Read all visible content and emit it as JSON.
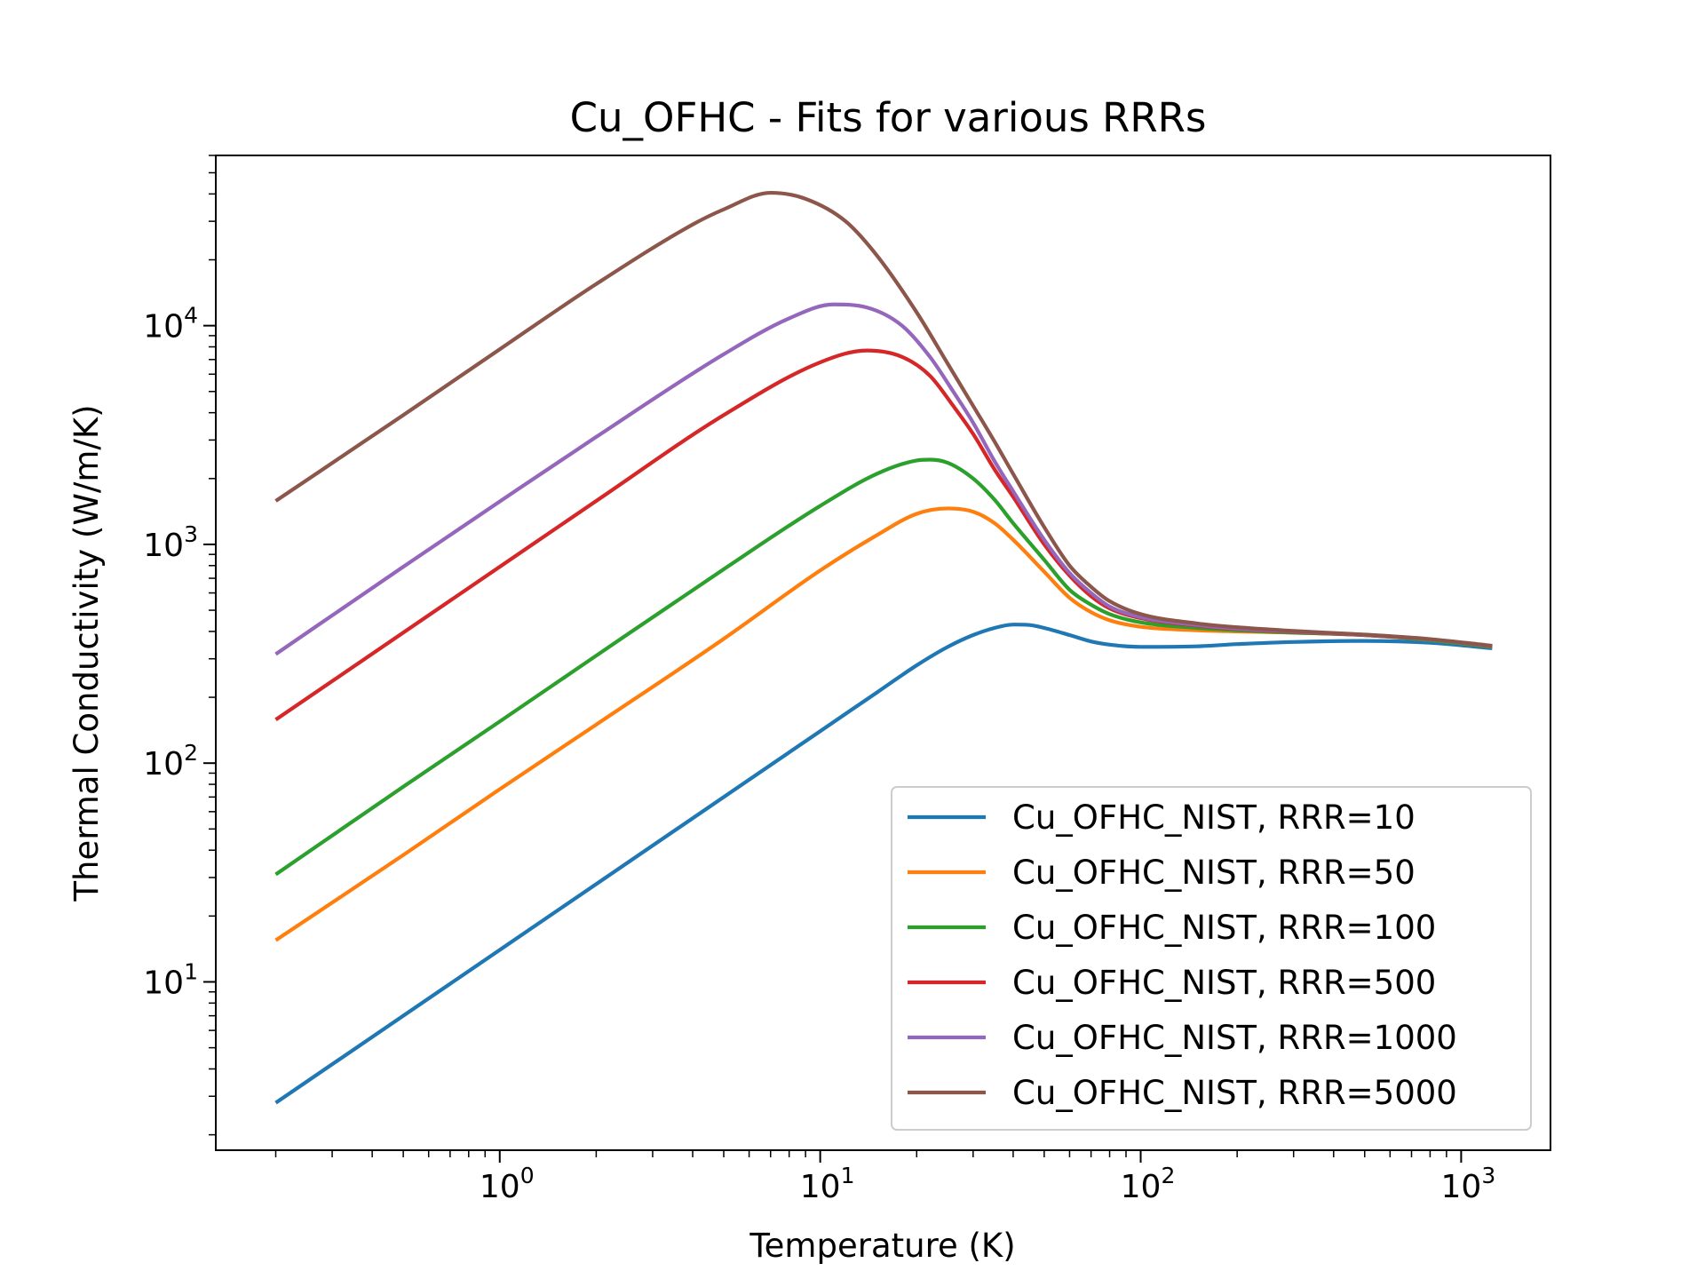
{
  "chart_data": {
    "type": "line",
    "title": "Cu_OFHC - Fits for various RRRs",
    "xlabel": "Temperature (K)",
    "ylabel": "Thermal Conductivity (W/m/K)",
    "xscale": "log",
    "yscale": "log",
    "xlim": [
      0.13,
      1900
    ],
    "ylim": [
      1.7,
      60000
    ],
    "x_ticks": [
      {
        "value": 1,
        "base": "10",
        "exp": "0"
      },
      {
        "value": 10,
        "base": "10",
        "exp": "1"
      },
      {
        "value": 100,
        "base": "10",
        "exp": "2"
      },
      {
        "value": 1000,
        "base": "10",
        "exp": "3"
      }
    ],
    "y_ticks": [
      {
        "value": 10,
        "base": "10",
        "exp": "1"
      },
      {
        "value": 100,
        "base": "10",
        "exp": "2"
      },
      {
        "value": 1000,
        "base": "10",
        "exp": "3"
      },
      {
        "value": 10000,
        "base": "10",
        "exp": "4"
      }
    ],
    "grid": false,
    "legend_position": "lower-right",
    "series": [
      {
        "name": "Cu_OFHC_NIST, RRR=10",
        "color": "#1f77b4",
        "x": [
          0.2,
          0.5,
          1,
          2,
          5,
          10,
          15,
          20,
          25,
          30,
          35,
          40,
          45,
          50,
          60,
          70,
          80,
          100,
          150,
          200,
          300,
          500,
          800,
          1250
        ],
        "y": [
          2.8,
          7,
          14,
          28,
          70,
          140,
          210,
          280,
          340,
          385,
          415,
          430,
          428,
          415,
          385,
          360,
          348,
          340,
          342,
          350,
          358,
          362,
          355,
          335
        ]
      },
      {
        "name": "Cu_OFHC_NIST, RRR=50",
        "color": "#ff7f0e",
        "x": [
          0.2,
          0.5,
          1,
          2,
          5,
          10,
          15,
          20,
          25,
          30,
          35,
          40,
          50,
          60,
          70,
          80,
          100,
          150,
          200,
          300,
          500,
          800,
          1250
        ],
        "y": [
          15.5,
          38,
          76,
          150,
          370,
          760,
          1100,
          1380,
          1460,
          1410,
          1250,
          1050,
          750,
          570,
          490,
          450,
          420,
          405,
          400,
          395,
          385,
          365,
          340
        ]
      },
      {
        "name": "Cu_OFHC_NIST, RRR=100",
        "color": "#2ca02c",
        "x": [
          0.2,
          0.5,
          1,
          2,
          5,
          10,
          15,
          20,
          22,
          25,
          30,
          35,
          40,
          50,
          60,
          70,
          80,
          100,
          150,
          200,
          300,
          500,
          800,
          1250
        ],
        "y": [
          31,
          78,
          155,
          310,
          770,
          1500,
          2100,
          2420,
          2440,
          2360,
          2000,
          1600,
          1250,
          850,
          620,
          530,
          480,
          440,
          415,
          405,
          395,
          385,
          365,
          340
        ]
      },
      {
        "name": "Cu_OFHC_NIST, RRR=500",
        "color": "#d62728",
        "x": [
          0.2,
          0.5,
          1,
          2,
          5,
          10,
          14,
          18,
          22,
          26,
          30,
          35,
          40,
          50,
          60,
          70,
          80,
          100,
          150,
          200,
          300,
          500,
          800,
          1250
        ],
        "y": [
          158,
          395,
          790,
          1580,
          3900,
          6800,
          7700,
          7200,
          5900,
          4300,
          3200,
          2200,
          1650,
          1000,
          720,
          580,
          510,
          460,
          425,
          410,
          398,
          385,
          368,
          342
        ]
      },
      {
        "name": "Cu_OFHC_NIST, RRR=1000",
        "color": "#9467bd",
        "x": [
          0.2,
          0.5,
          1,
          2,
          5,
          8,
          11,
          14,
          18,
          22,
          26,
          30,
          35,
          40,
          50,
          60,
          70,
          80,
          100,
          150,
          200,
          300,
          500,
          800,
          1250
        ],
        "y": [
          315,
          790,
          1570,
          3100,
          7400,
          10800,
          12500,
          12100,
          10000,
          7200,
          5000,
          3600,
          2400,
          1750,
          1050,
          740,
          600,
          520,
          465,
          428,
          412,
          400,
          386,
          368,
          343
        ]
      },
      {
        "name": "Cu_OFHC_NIST, RRR=5000",
        "color": "#8c564b",
        "x": [
          0.2,
          0.5,
          1,
          2,
          4,
          5,
          7,
          9,
          12,
          15,
          20,
          25,
          30,
          35,
          40,
          50,
          60,
          70,
          80,
          100,
          150,
          200,
          300,
          500,
          800,
          1250
        ],
        "y": [
          1580,
          3900,
          7800,
          15500,
          29000,
          34000,
          40500,
          38000,
          30000,
          21000,
          11500,
          6700,
          4300,
          2950,
          2100,
          1200,
          800,
          640,
          550,
          480,
          435,
          418,
          402,
          387,
          369,
          344
        ]
      }
    ]
  }
}
